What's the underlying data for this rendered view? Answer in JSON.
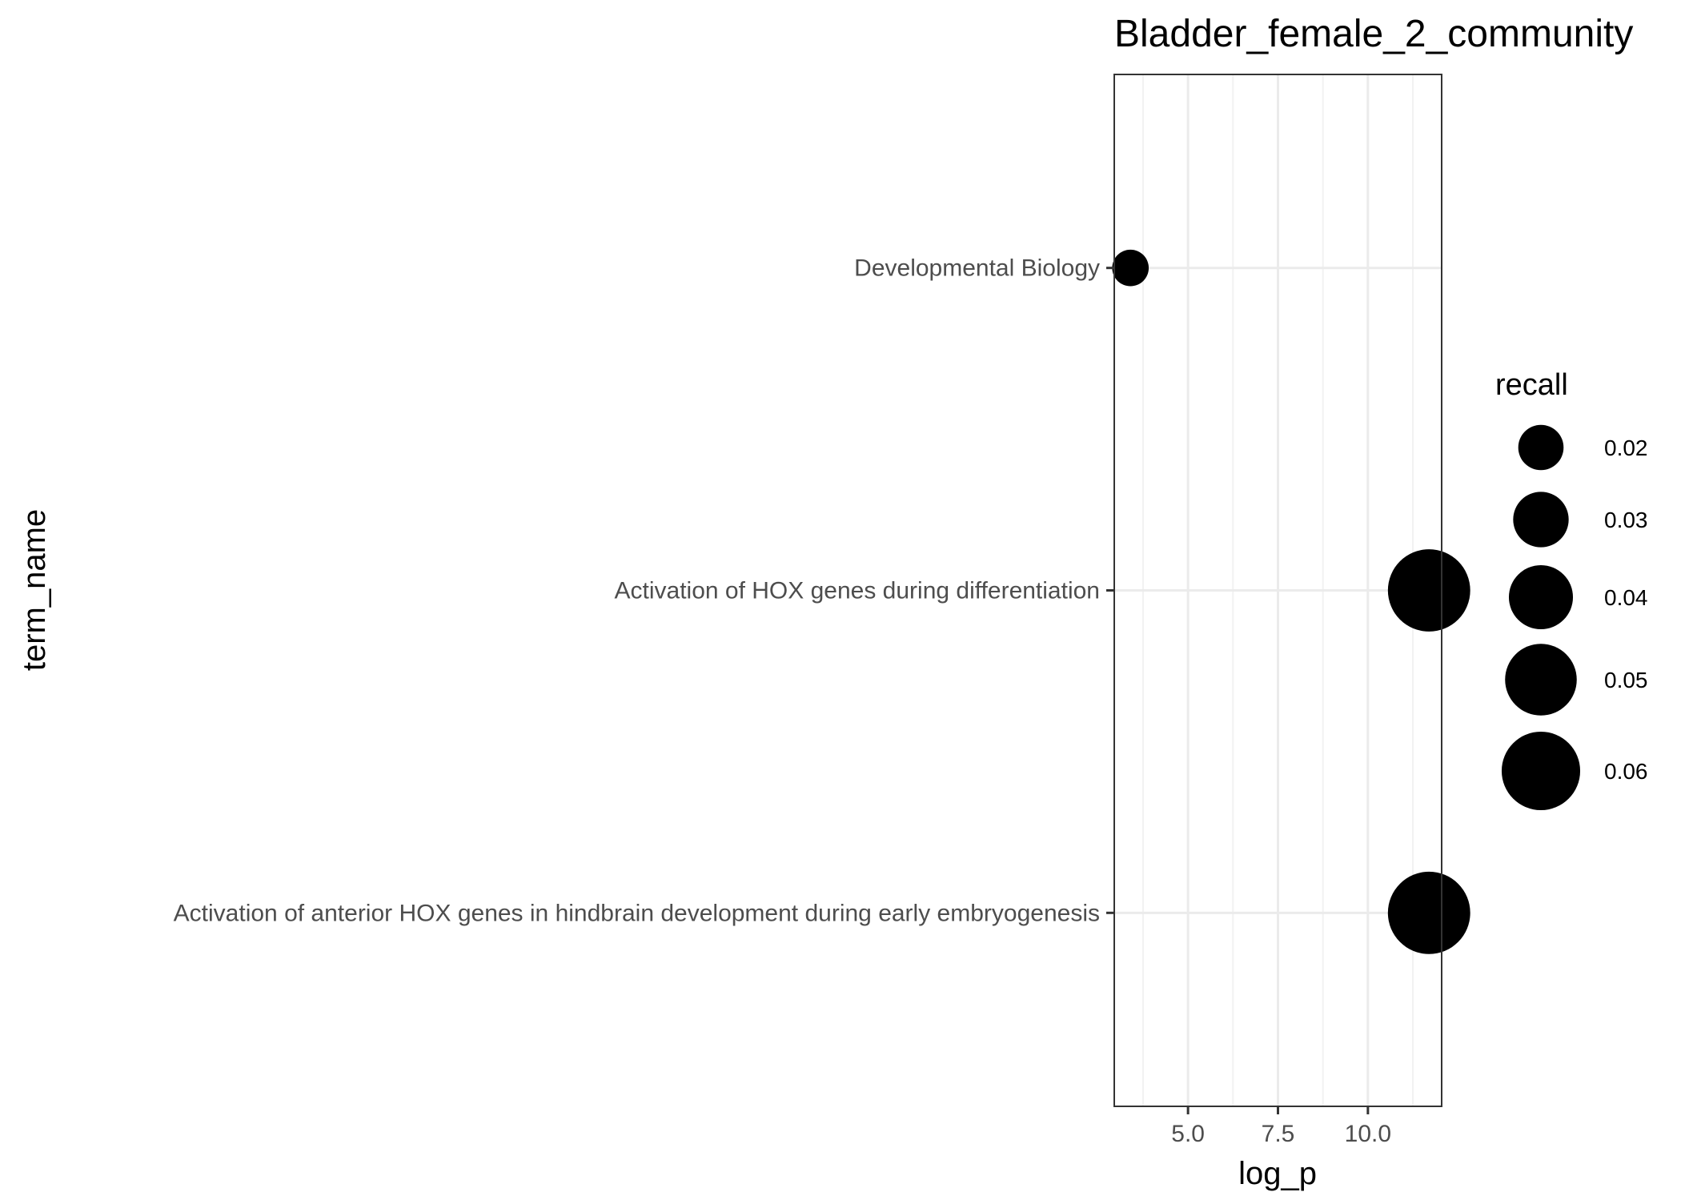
{
  "chart_data": {
    "type": "scatter",
    "title": "Bladder_female_2_community",
    "xlabel": "log_p",
    "ylabel": "term_name",
    "xlim": [
      2.95,
      12.05
    ],
    "x_ticks": [
      5.0,
      7.5,
      10.0
    ],
    "x_tick_labels": [
      "5.0",
      "7.5",
      "10.0"
    ],
    "categories": [
      "Activation of anterior HOX genes in hindbrain development during early embryogenesis",
      "Activation of HOX genes during differentiation",
      "Developmental Biology"
    ],
    "points": [
      {
        "term_name": "Developmental Biology",
        "log_p": 3.4,
        "recall": 0.013
      },
      {
        "term_name": "Activation of HOX genes during differentiation",
        "log_p": 11.7,
        "recall": 0.066
      },
      {
        "term_name": "Activation of anterior HOX genes in hindbrain development during early embryogenesis",
        "log_p": 11.7,
        "recall": 0.066
      }
    ],
    "size_legend": {
      "title": "recall",
      "values": [
        0.02,
        0.03,
        0.04,
        0.05,
        0.06
      ],
      "labels": [
        "0.02",
        "0.03",
        "0.04",
        "0.05",
        "0.06"
      ]
    },
    "point_color": "#000000",
    "grid": true,
    "theme": "bw",
    "legend_position": "right"
  }
}
